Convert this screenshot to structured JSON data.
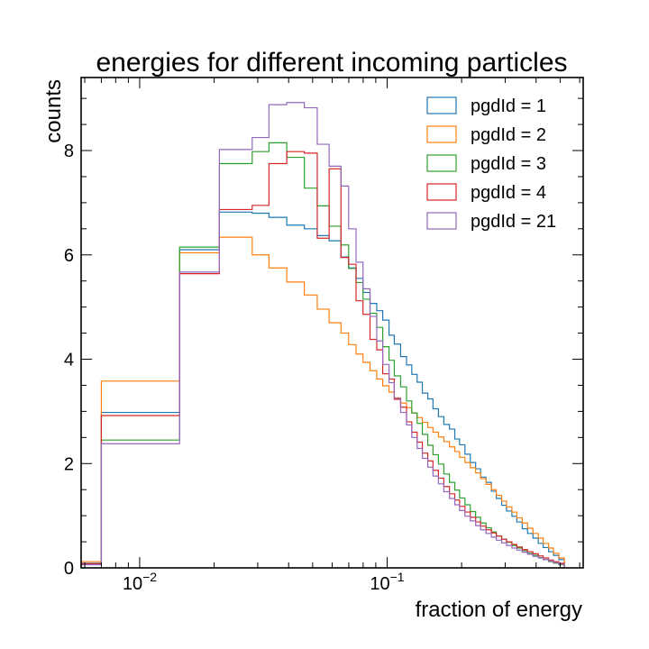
{
  "chart_data": {
    "type": "histogram",
    "title": "energies for different incoming particles",
    "xlabel": "fraction of energy",
    "ylabel": "counts",
    "xscale": "log",
    "xlim": [
      0.0058,
      0.62
    ],
    "ylim": [
      0,
      9.4
    ],
    "x_tick_labels": [
      {
        "value": 0.01,
        "base": "10",
        "exp": "−2"
      },
      {
        "value": 0.1,
        "base": "10",
        "exp": "−1"
      }
    ],
    "y_ticks": [
      0,
      2,
      4,
      6,
      8
    ],
    "legend_position": "top-right",
    "grid": false,
    "series": [
      {
        "name": "pgdId = 1",
        "color": "#1f77b4",
        "edges": [
          0.0058,
          0.007,
          0.0145,
          0.021,
          0.0285,
          0.0333,
          0.0393,
          0.0463,
          0.0522,
          0.0583,
          0.0651,
          0.0699,
          0.0749,
          0.0799,
          0.0853,
          0.0908,
          0.096,
          0.1018,
          0.1069,
          0.1134,
          0.1198,
          0.1258,
          0.1322,
          0.1388,
          0.146,
          0.1532,
          0.1612,
          0.1695,
          0.1786,
          0.1877,
          0.1963,
          0.2063,
          0.2168,
          0.2279,
          0.2386,
          0.2509,
          0.2638,
          0.2761,
          0.2903,
          0.3038,
          0.3194,
          0.3343,
          0.3515,
          0.3695,
          0.3884,
          0.4083,
          0.4273,
          0.4492,
          0.4701,
          0.4942,
          0.52
        ],
        "values": [
          0.09,
          2.98,
          6.1,
          6.82,
          6.8,
          6.72,
          6.57,
          6.5,
          6.37,
          6.27,
          5.96,
          5.75,
          5.55,
          5.28,
          5.07,
          4.93,
          4.75,
          4.46,
          4.29,
          4.05,
          3.89,
          3.71,
          3.56,
          3.35,
          3.24,
          3.05,
          2.9,
          2.75,
          2.66,
          2.47,
          2.36,
          2.18,
          2.02,
          1.9,
          1.74,
          1.64,
          1.47,
          1.33,
          1.2,
          1.09,
          0.99,
          0.88,
          0.75,
          0.66,
          0.57,
          0.47,
          0.39,
          0.31,
          0.24,
          0.16
        ]
      },
      {
        "name": "pgdId = 2",
        "color": "#ff7f0e",
        "edges": [
          0.0058,
          0.007,
          0.0145,
          0.021,
          0.0285,
          0.0333,
          0.0393,
          0.0463,
          0.0522,
          0.0583,
          0.0651,
          0.0699,
          0.0749,
          0.0799,
          0.0853,
          0.0908,
          0.096,
          0.1018,
          0.1069,
          0.1134,
          0.1198,
          0.1258,
          0.1322,
          0.1388,
          0.146,
          0.1532,
          0.1612,
          0.1695,
          0.1786,
          0.1877,
          0.1963,
          0.2063,
          0.2168,
          0.2279,
          0.2386,
          0.2509,
          0.2638,
          0.2761,
          0.2903,
          0.3038,
          0.3194,
          0.3343,
          0.3515,
          0.3695,
          0.3884,
          0.4083,
          0.4273,
          0.4492,
          0.4701,
          0.4942,
          0.52
        ],
        "values": [
          0.12,
          3.58,
          6.04,
          6.34,
          6.0,
          5.75,
          5.48,
          5.23,
          4.96,
          4.7,
          4.5,
          4.28,
          4.1,
          3.94,
          3.78,
          3.62,
          3.49,
          3.37,
          3.26,
          3.16,
          3.07,
          2.97,
          2.88,
          2.79,
          2.69,
          2.6,
          2.51,
          2.42,
          2.32,
          2.23,
          2.12,
          2.02,
          1.92,
          1.82,
          1.71,
          1.6,
          1.5,
          1.39,
          1.28,
          1.17,
          1.07,
          0.96,
          0.86,
          0.76,
          0.66,
          0.57,
          0.47,
          0.38,
          0.28,
          0.19
        ]
      },
      {
        "name": "pgdId = 3",
        "color": "#2ca02c",
        "edges": [
          0.0058,
          0.007,
          0.0145,
          0.021,
          0.0285,
          0.0333,
          0.0393,
          0.0463,
          0.0522,
          0.0583,
          0.0651,
          0.0699,
          0.0749,
          0.0799,
          0.0853,
          0.0908,
          0.096,
          0.1018,
          0.1069,
          0.1134,
          0.1198,
          0.1258,
          0.1322,
          0.1388,
          0.146,
          0.1532,
          0.1612,
          0.1695,
          0.1786,
          0.1877,
          0.1963,
          0.2063,
          0.2168,
          0.2279,
          0.2386,
          0.2509,
          0.2638,
          0.2761,
          0.2903,
          0.3038,
          0.3194,
          0.3343,
          0.3515,
          0.3695,
          0.3884,
          0.4083,
          0.4273,
          0.4492,
          0.4701,
          0.4942,
          0.52
        ],
        "values": [
          0.07,
          2.45,
          6.15,
          7.75,
          7.98,
          8.15,
          7.87,
          7.28,
          6.94,
          6.55,
          6.19,
          5.74,
          5.47,
          5.15,
          4.88,
          4.61,
          4.24,
          3.98,
          3.68,
          3.47,
          3.2,
          2.97,
          2.77,
          2.56,
          2.35,
          2.17,
          1.99,
          1.8,
          1.64,
          1.49,
          1.34,
          1.21,
          1.08,
          0.97,
          0.86,
          0.77,
          0.69,
          0.61,
          0.55,
          0.49,
          0.43,
          0.38,
          0.33,
          0.28,
          0.24,
          0.2,
          0.16,
          0.12,
          0.09,
          0.06
        ]
      },
      {
        "name": "pgdId = 4",
        "color": "#d62728",
        "edges": [
          0.0058,
          0.007,
          0.0145,
          0.021,
          0.0285,
          0.0333,
          0.0393,
          0.0463,
          0.0522,
          0.0583,
          0.0651,
          0.0699,
          0.0749,
          0.0799,
          0.0853,
          0.0908,
          0.096,
          0.1018,
          0.1069,
          0.1134,
          0.1198,
          0.1258,
          0.1322,
          0.1388,
          0.146,
          0.1532,
          0.1612,
          0.1695,
          0.1786,
          0.1877,
          0.1963,
          0.2063,
          0.2168,
          0.2279,
          0.2386,
          0.2509,
          0.2638,
          0.2761,
          0.2903,
          0.3038,
          0.3194,
          0.3343,
          0.3515,
          0.3695,
          0.3884,
          0.4083,
          0.4273,
          0.4492,
          0.4701,
          0.4942,
          0.52
        ],
        "values": [
          0.08,
          2.92,
          5.64,
          6.87,
          6.95,
          7.75,
          7.98,
          7.95,
          6.32,
          7.65,
          5.95,
          5.82,
          5.12,
          4.86,
          4.38,
          4.18,
          3.72,
          3.62,
          3.23,
          3.08,
          2.8,
          2.6,
          2.41,
          2.2,
          2.05,
          1.87,
          1.72,
          1.56,
          1.42,
          1.3,
          1.18,
          1.07,
          0.97,
          0.88,
          0.8,
          0.73,
          0.67,
          0.61,
          0.55,
          0.5,
          0.45,
          0.4,
          0.35,
          0.31,
          0.27,
          0.23,
          0.19,
          0.15,
          0.12,
          0.09
        ]
      },
      {
        "name": "pgdId = 21",
        "color": "#9467bd",
        "edges": [
          0.0058,
          0.007,
          0.0145,
          0.021,
          0.0285,
          0.0333,
          0.0393,
          0.0463,
          0.0522,
          0.0583,
          0.0651,
          0.0699,
          0.0749,
          0.0799,
          0.0853,
          0.0908,
          0.096,
          0.1018,
          0.1069,
          0.1134,
          0.1198,
          0.1258,
          0.1322,
          0.1388,
          0.146,
          0.1532,
          0.1612,
          0.1695,
          0.1786,
          0.1877,
          0.1963,
          0.2063,
          0.2168,
          0.2279,
          0.2386,
          0.2509,
          0.2638,
          0.2761,
          0.2903,
          0.3038,
          0.3194,
          0.3343,
          0.3515,
          0.3695,
          0.3884,
          0.4083,
          0.4273,
          0.4492,
          0.4701,
          0.4942,
          0.52
        ],
        "values": [
          0.06,
          2.38,
          5.67,
          8.02,
          8.25,
          8.88,
          8.92,
          8.82,
          8.12,
          7.7,
          7.32,
          6.5,
          5.86,
          5.35,
          4.82,
          4.35,
          3.9,
          3.55,
          3.25,
          2.98,
          2.74,
          2.5,
          2.29,
          2.1,
          1.93,
          1.76,
          1.61,
          1.46,
          1.33,
          1.21,
          1.1,
          0.99,
          0.9,
          0.81,
          0.73,
          0.66,
          0.59,
          0.53,
          0.48,
          0.43,
          0.38,
          0.34,
          0.3,
          0.26,
          0.22,
          0.19,
          0.16,
          0.13,
          0.1,
          0.07
        ]
      }
    ]
  }
}
